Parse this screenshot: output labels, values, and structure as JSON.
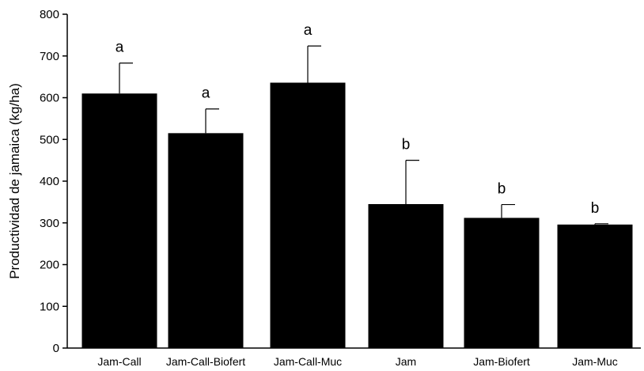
{
  "chart_data": {
    "type": "bar",
    "title": "",
    "xlabel": "",
    "ylabel": "Productividad de jamaica (kg/ha)",
    "ylim": [
      0,
      800
    ],
    "yticks": [
      0,
      100,
      200,
      300,
      400,
      500,
      600,
      700,
      800
    ],
    "categories": [
      "Jam-Call",
      "Jam-Call-Biofert",
      "Jam-Call-Muc",
      "Jam",
      "Jam-Biofert",
      "Jam-Muc"
    ],
    "values": [
      610,
      515,
      636,
      345,
      312,
      296
    ],
    "error_upper": [
      73,
      58,
      88,
      105,
      32,
      2
    ],
    "significance_letters": [
      "a",
      "a",
      "a",
      "b",
      "b",
      "b"
    ],
    "grid": false,
    "colors": {
      "bar": "#000000",
      "axis": "#000000"
    }
  }
}
